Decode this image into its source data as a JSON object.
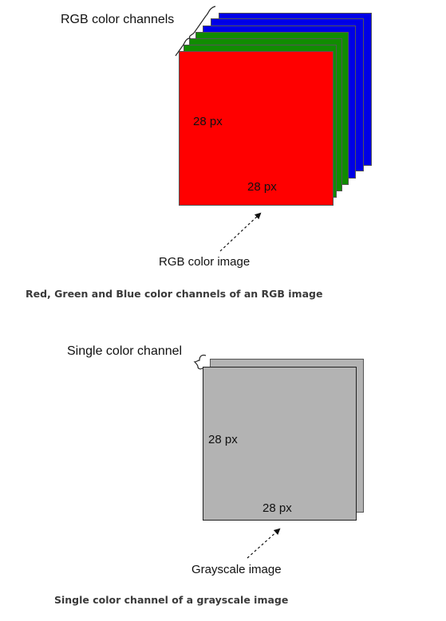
{
  "rgb_figure": {
    "channels_label": "RGB color channels",
    "height_label": "28 px",
    "width_label": "28 px",
    "image_label": "RGB color image",
    "caption": "Red, Green and Blue color channels of an RGB image",
    "colors": {
      "red": "#ff0000",
      "green": "#118c00",
      "blue": "#0000e6"
    }
  },
  "gray_figure": {
    "channel_label": "Single color channel",
    "height_label": "28 px",
    "width_label": "28 px",
    "image_label": "Grayscale image",
    "caption": "Single color channel of a grayscale image",
    "colors": {
      "gray": "#b3b3b3"
    }
  }
}
